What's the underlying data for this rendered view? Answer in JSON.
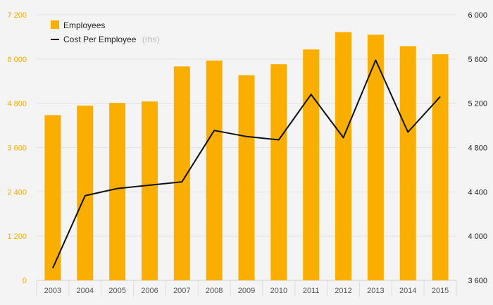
{
  "chart_data": {
    "type": "bar",
    "categories": [
      "2003",
      "2004",
      "2005",
      "2006",
      "2007",
      "2008",
      "2009",
      "2010",
      "2011",
      "2012",
      "2013",
      "2014",
      "2015"
    ],
    "series": [
      {
        "name": "Employees",
        "type": "bar",
        "axis": "left",
        "color": "#f9ae00",
        "values": [
          4480,
          4740,
          4810,
          4850,
          5800,
          5960,
          5560,
          5860,
          6260,
          6730,
          6660,
          6350,
          6130
        ]
      },
      {
        "name": "Cost Per Employee",
        "name_suffix": "(rhs)",
        "type": "line",
        "axis": "right",
        "color": "#111111",
        "values": [
          3710,
          4365,
          4430,
          4460,
          4490,
          4955,
          4900,
          4870,
          5280,
          4890,
          5590,
          4940,
          5260
        ]
      }
    ],
    "y_left": {
      "ylim": [
        0,
        7200
      ],
      "ticks": [
        "0",
        "1 200",
        "2 400",
        "3 600",
        "4 800",
        "6 000",
        "7 200"
      ]
    },
    "y_right": {
      "ylim": [
        3600,
        6000
      ],
      "ticks": [
        "3 600",
        "4 000",
        "4 400",
        "4 800",
        "5 200",
        "5 600",
        "6 000"
      ]
    },
    "grid": true,
    "legend": "top-left"
  }
}
